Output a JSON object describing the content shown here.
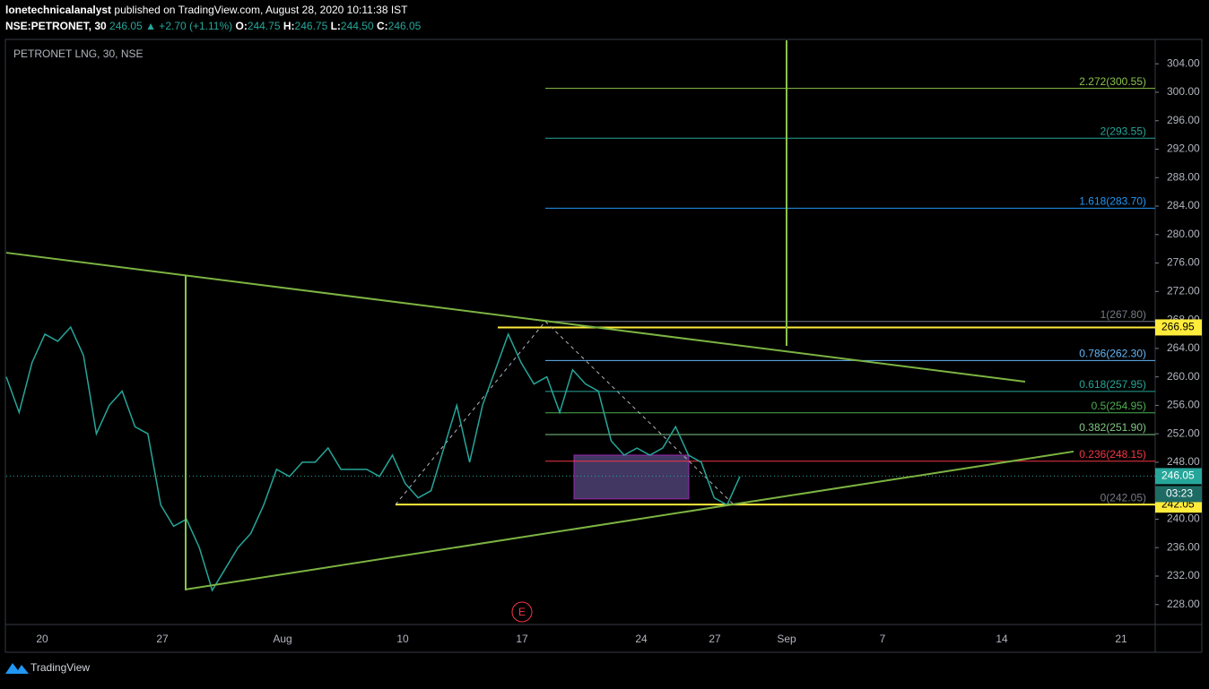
{
  "header": {
    "publisher": "lonetechnicalanalyst",
    "published": "published on TradingView.com, August 28, 2020 10:11:38 IST",
    "symbol": "NSE:PETRONET, 30",
    "last": "246.05",
    "change": "▲ +2.70 (+1.11%)",
    "ohlc": [
      {
        "key": "O:",
        "value": "244.75"
      },
      {
        "key": "H:",
        "value": "246.75"
      },
      {
        "key": "L:",
        "value": "244.50"
      },
      {
        "key": "C:",
        "value": "246.05"
      }
    ]
  },
  "footer": {
    "brand": "TradingView"
  },
  "chart_data": {
    "type": "line",
    "legend": "PETRONET LNG, 30, NSE",
    "categories": [
      "20",
      "27",
      "Aug",
      "10",
      "17",
      "24",
      "27",
      "Sep",
      "7",
      "14",
      "21"
    ],
    "price": {
      "name": "PETRONET",
      "color": "#26a69a",
      "values": [
        260,
        255,
        262,
        266,
        265,
        267,
        263,
        252,
        256,
        258,
        253,
        252,
        242,
        239,
        240,
        236,
        230,
        233,
        236,
        238,
        242,
        247,
        246,
        248,
        248,
        250,
        247,
        247,
        247,
        246,
        249,
        245,
        243,
        244,
        250,
        256,
        248,
        256,
        261,
        266,
        262,
        259,
        260,
        255,
        261,
        259,
        258,
        251,
        249,
        250,
        249,
        250,
        253,
        249,
        248,
        243,
        242,
        246
      ]
    },
    "ylim": [
      225.2,
      307.3
    ],
    "yticks": [
      {
        "value": 228,
        "label": "228.00"
      },
      {
        "value": 232,
        "label": "232.00"
      },
      {
        "value": 236,
        "label": "236.00"
      },
      {
        "value": 240,
        "label": "240.00"
      },
      {
        "value": 244,
        "label": "244.00"
      },
      {
        "value": 248,
        "label": "248.00"
      },
      {
        "value": 252,
        "label": "252.00"
      },
      {
        "value": 256,
        "label": "256.00"
      },
      {
        "value": 260,
        "label": "260.00"
      },
      {
        "value": 264,
        "label": "264.00"
      },
      {
        "value": 268,
        "label": "268.00"
      },
      {
        "value": 272,
        "label": "272.00"
      },
      {
        "value": 276,
        "label": "276.00"
      },
      {
        "value": 280,
        "label": "280.00"
      },
      {
        "value": 284,
        "label": "284.00"
      },
      {
        "value": 288,
        "label": "288.00"
      },
      {
        "value": 292,
        "label": "292.00"
      },
      {
        "value": 296,
        "label": "296.00"
      },
      {
        "value": 300,
        "label": "300.00"
      },
      {
        "value": 304,
        "label": "304.00"
      }
    ],
    "fib_levels": [
      {
        "value": 300.55,
        "label": "2.272(300.55)",
        "color": "#8bc34a"
      },
      {
        "value": 293.55,
        "label": "2(293.55)",
        "color": "#26a69a"
      },
      {
        "value": 283.7,
        "label": "1.618(283.70)",
        "color": "#2196f3"
      },
      {
        "value": 267.8,
        "label": "1(267.80)",
        "color": "#787b86"
      },
      {
        "value": 262.3,
        "label": "0.786(262.30)",
        "color": "#64b5f6"
      },
      {
        "value": 257.95,
        "label": "0.618(257.95)",
        "color": "#26a69a"
      },
      {
        "value": 254.95,
        "label": "0.5(254.95)",
        "color": "#4caf50"
      },
      {
        "value": 251.9,
        "label": "0.382(251.90)",
        "color": "#81c784"
      },
      {
        "value": 248.15,
        "label": "0.236(248.15)",
        "color": "#f23645"
      },
      {
        "value": 242.05,
        "label": "0(242.05)",
        "color": "#787b86"
      }
    ],
    "price_labels": [
      {
        "value": 266.95,
        "label": "266.95",
        "color": "#ffeb3b"
      },
      {
        "value": 246.05,
        "label": "246.05",
        "color": "#26a69a"
      },
      {
        "value": 242.05,
        "label": "242.05",
        "color": "#ffeb3b"
      }
    ],
    "countdown": "03:23",
    "trendlines": [
      {
        "start": 277.45,
        "end": 259.33
      },
      {
        "start": 230.13,
        "end": 249.51
      }
    ],
    "verticals": [
      {
        "low": 230,
        "high": 274.2
      },
      {
        "low": 264.36,
        "high": 307.3
      }
    ],
    "zone": {
      "low": 242.85,
      "high": 249.0
    },
    "zigzag": [
      242.05,
      267.8,
      242.05
    ],
    "event": "E"
  }
}
